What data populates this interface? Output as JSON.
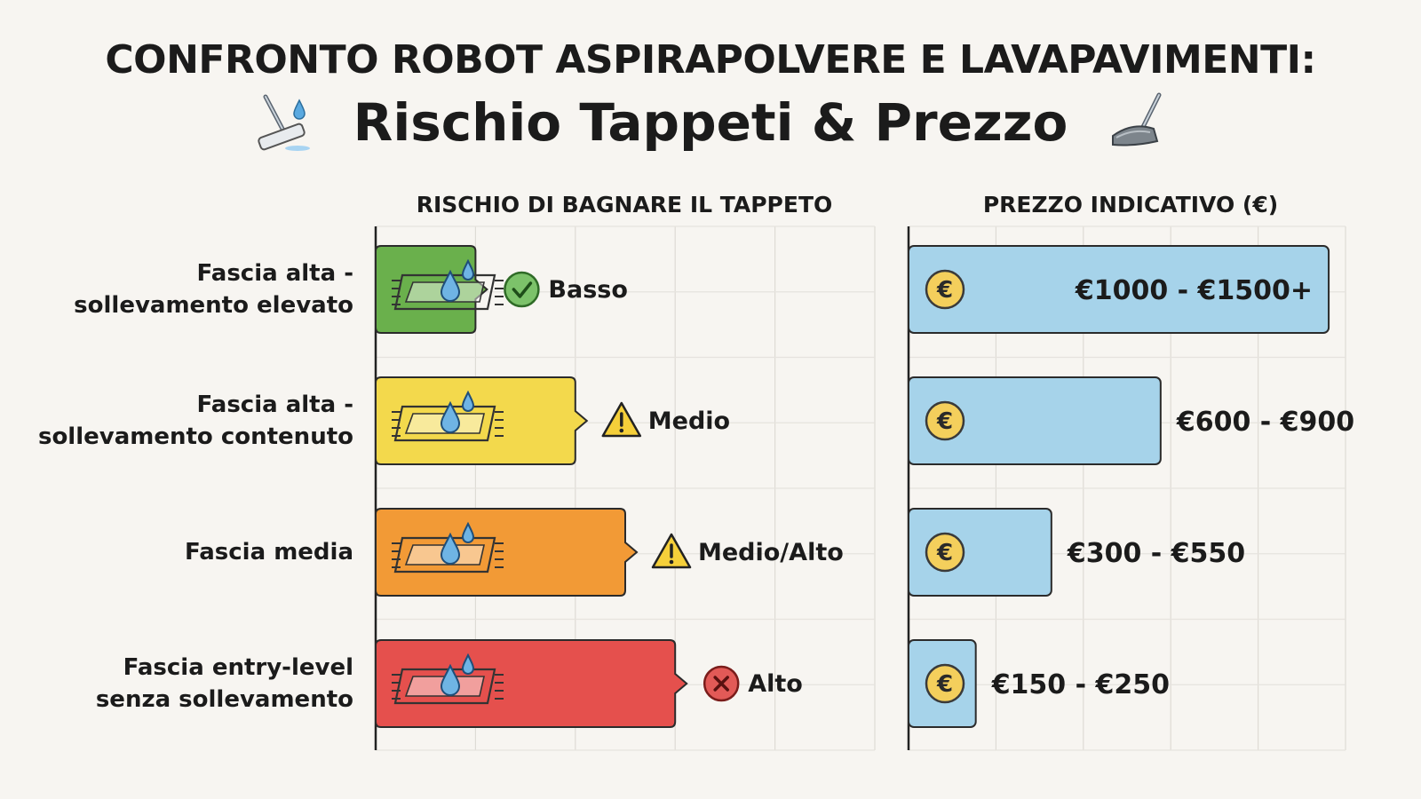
{
  "title": "CONFRONTO ROBOT ASPIRAPOLVERE E LAVAPAVIMENTI:",
  "subtitle": "Rischio Tappeti & Prezzo",
  "chart_data": {
    "type": "bar",
    "orientation": "horizontal",
    "categories": [
      [
        "Fascia alta -",
        "sollevamento elevato"
      ],
      [
        "Fascia alta -",
        "sollevamento contenuto"
      ],
      [
        "Fascia media"
      ],
      [
        "Fascia entry-level",
        "senza sollevamento"
      ]
    ],
    "panels": [
      {
        "name": "risk",
        "header": "RISCHIO DI BAGNARE IL TAPPETO",
        "risk_levels": [
          "Basso",
          "Medio",
          "Medio/Alto",
          "Alto"
        ],
        "status_icons": [
          "check",
          "warning",
          "warning",
          "error"
        ],
        "values": [
          1,
          2,
          2.5,
          3
        ],
        "xlim": [
          0,
          5
        ],
        "colors": [
          "#6ab04c",
          "#f3d94c",
          "#f29a36",
          "#e5504d"
        ],
        "grid": true
      },
      {
        "name": "price",
        "header": "PREZZO INDICATIVO (€)",
        "labels": [
          "€1000 - €1500+",
          "€600 - €900",
          "€300 - €550",
          "€150 - €250"
        ],
        "values": [
          1250,
          750,
          425,
          200
        ],
        "xlim": [
          0,
          1300
        ],
        "color": "#a6d3ea",
        "grid": true
      }
    ]
  }
}
